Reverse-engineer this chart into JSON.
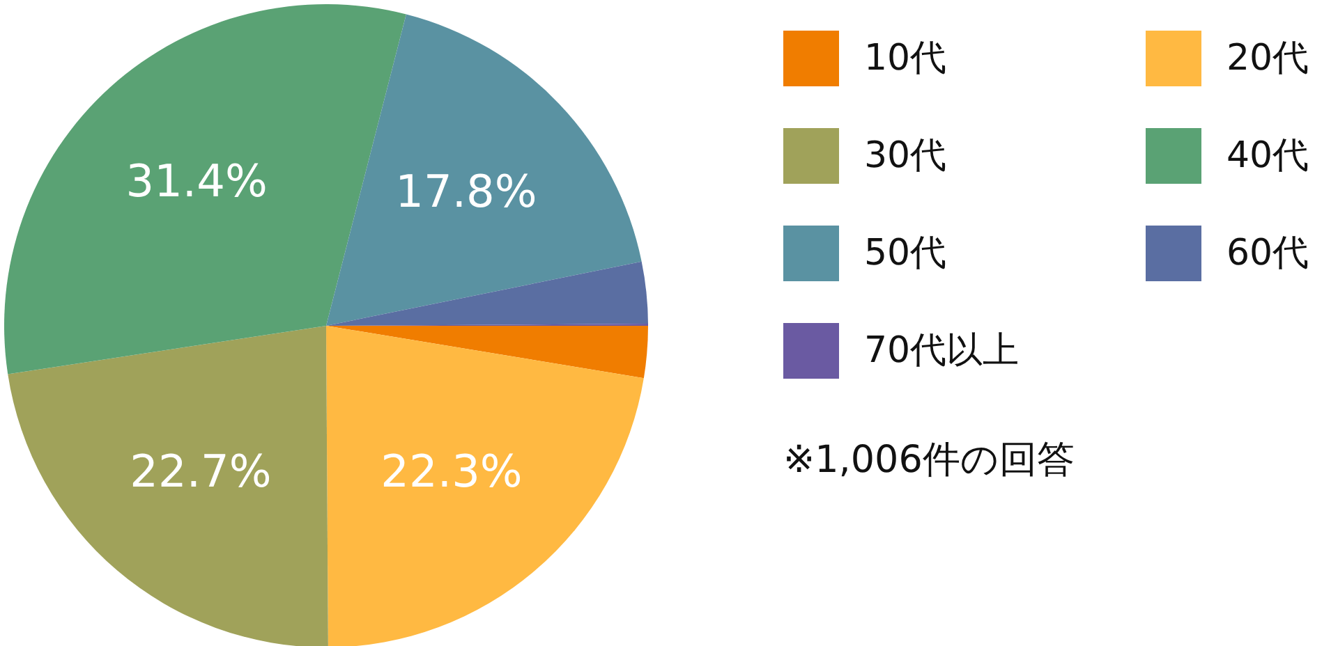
{
  "chart_data": {
    "type": "pie",
    "categories": [
      "10代",
      "20代",
      "30代",
      "40代",
      "50代",
      "60代",
      "70代以上"
    ],
    "values": [
      2.6,
      22.3,
      22.7,
      31.4,
      17.8,
      3.1,
      0.1
    ],
    "colors": [
      "#f07d00",
      "#ffb942",
      "#a0a25a",
      "#5aa274",
      "#5a92a2",
      "#5a6ea2",
      "#6a5aa2"
    ],
    "value_labels": [
      null,
      "22.3%",
      "22.7%",
      "31.4%",
      "17.8%",
      null,
      null
    ],
    "legend": "right",
    "annotations": [
      "※1,006件の回答"
    ]
  }
}
